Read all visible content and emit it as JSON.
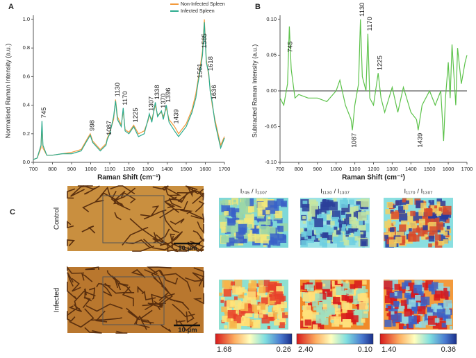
{
  "chart_data": [
    {
      "type": "line",
      "panel": "A",
      "x_label": "Raman Shift (cm⁻¹)",
      "y_label": "Normalised Raman Intensity (a.u.)",
      "x": [
        700,
        720,
        740,
        745,
        750,
        770,
        800,
        850,
        900,
        950,
        980,
        998,
        1010,
        1050,
        1080,
        1087,
        1100,
        1120,
        1130,
        1140,
        1160,
        1170,
        1180,
        1200,
        1225,
        1250,
        1280,
        1300,
        1307,
        1320,
        1338,
        1350,
        1370,
        1380,
        1396,
        1410,
        1439,
        1460,
        1500,
        1530,
        1550,
        1561,
        1570,
        1585,
        1595,
        1605,
        1618,
        1625,
        1636,
        1650,
        1680,
        1700
      ],
      "series": [
        {
          "name": "Non-Infected Spleen",
          "color": "#f39a3c",
          "values": [
            0.02,
            0.03,
            0.1,
            0.26,
            0.1,
            0.05,
            0.05,
            0.06,
            0.07,
            0.09,
            0.16,
            0.2,
            0.15,
            0.09,
            0.13,
            0.17,
            0.21,
            0.3,
            0.44,
            0.32,
            0.26,
            0.36,
            0.23,
            0.21,
            0.26,
            0.2,
            0.22,
            0.29,
            0.33,
            0.3,
            0.4,
            0.33,
            0.35,
            0.32,
            0.38,
            0.3,
            0.25,
            0.2,
            0.27,
            0.37,
            0.48,
            0.57,
            0.64,
            0.78,
            1.0,
            0.72,
            0.6,
            0.52,
            0.4,
            0.3,
            0.12,
            0.18
          ]
        },
        {
          "name": "Infected Spleen",
          "color": "#2bab8e",
          "values": [
            0.02,
            0.03,
            0.12,
            0.29,
            0.12,
            0.05,
            0.05,
            0.06,
            0.06,
            0.08,
            0.15,
            0.19,
            0.14,
            0.08,
            0.12,
            0.16,
            0.2,
            0.32,
            0.43,
            0.3,
            0.25,
            0.38,
            0.22,
            0.2,
            0.25,
            0.18,
            0.2,
            0.3,
            0.34,
            0.28,
            0.42,
            0.32,
            0.36,
            0.3,
            0.4,
            0.28,
            0.22,
            0.18,
            0.25,
            0.35,
            0.45,
            0.55,
            0.62,
            0.75,
            0.98,
            0.7,
            0.62,
            0.5,
            0.42,
            0.28,
            0.1,
            0.17
          ]
        }
      ],
      "peak_labels": [
        745,
        998,
        1087,
        1130,
        1170,
        1225,
        1307,
        1338,
        1370,
        1396,
        1439,
        1561,
        1585,
        1618,
        1636
      ],
      "xlim": [
        700,
        1700
      ],
      "xticks": [
        700,
        800,
        900,
        1000,
        1100,
        1200,
        1300,
        1400,
        1500,
        1600,
        1700
      ],
      "ylim": [
        0,
        1
      ],
      "yticks": [
        {
          "value": 0,
          "label": "0.0"
        },
        0.2,
        0.4,
        0.6,
        0.8,
        {
          "value": 1,
          "label": "1.0"
        }
      ],
      "legend": "top-right"
    },
    {
      "type": "line",
      "panel": "B",
      "x_label": "Raman Shift (cm⁻¹)",
      "y_label": "Subtracted Raman Intensity (a.u.)",
      "x": [
        700,
        720,
        740,
        750,
        760,
        780,
        800,
        850,
        900,
        950,
        1000,
        1020,
        1050,
        1080,
        1087,
        1100,
        1120,
        1130,
        1140,
        1160,
        1170,
        1180,
        1200,
        1225,
        1240,
        1260,
        1300,
        1330,
        1360,
        1400,
        1430,
        1439,
        1460,
        1500,
        1530,
        1560,
        1575,
        1585,
        1600,
        1610,
        1620,
        1640,
        1650,
        1670,
        1690,
        1700
      ],
      "color": "#5cc24a",
      "values": [
        -0.01,
        -0.02,
        0.01,
        0.09,
        0.03,
        -0.01,
        -0.005,
        -0.01,
        -0.01,
        -0.015,
        0.0,
        0.015,
        -0.02,
        -0.04,
        -0.055,
        -0.02,
        0.01,
        0.1,
        0.02,
        0.0,
        0.08,
        -0.01,
        -0.02,
        0.025,
        -0.01,
        -0.03,
        0.005,
        -0.03,
        0.005,
        -0.03,
        -0.04,
        -0.055,
        -0.02,
        0.0,
        -0.02,
        0.0,
        -0.07,
        -0.01,
        0.04,
        -0.01,
        0.065,
        -0.02,
        0.06,
        0.01,
        0.04,
        0.05
      ],
      "peak_labels": [
        745,
        1087,
        1130,
        1170,
        1225,
        1439
      ],
      "xlim": [
        700,
        1700
      ],
      "xticks": [
        700,
        800,
        900,
        1000,
        1100,
        1200,
        1300,
        1400,
        1500,
        1600,
        1700
      ],
      "ylim": [
        -0.1,
        0.1
      ],
      "yticks": [
        {
          "value": -0.1,
          "label": "-0.10"
        },
        {
          "value": -0.05,
          "label": "-0.05"
        },
        {
          "value": 0,
          "label": "0.00"
        },
        {
          "value": 0.05,
          "label": "0.05"
        },
        {
          "value": 0.1,
          "label": "0.10"
        }
      ]
    }
  ],
  "panel_c": {
    "label": "C",
    "rows": [
      "Control",
      "Infected"
    ],
    "scale_bar": "10 μm",
    "maps": [
      {
        "title": "I₇₄₅ / I₁₃₀₇",
        "max": "1.68",
        "min": "0.26"
      },
      {
        "title": "I₁₁₃₀ / I₁₃₀₇",
        "max": "2.40",
        "min": "0.10"
      },
      {
        "title": "I₁₁₇₀ / I₁₃₀₇",
        "max": "1.40",
        "min": "0.36"
      }
    ]
  }
}
